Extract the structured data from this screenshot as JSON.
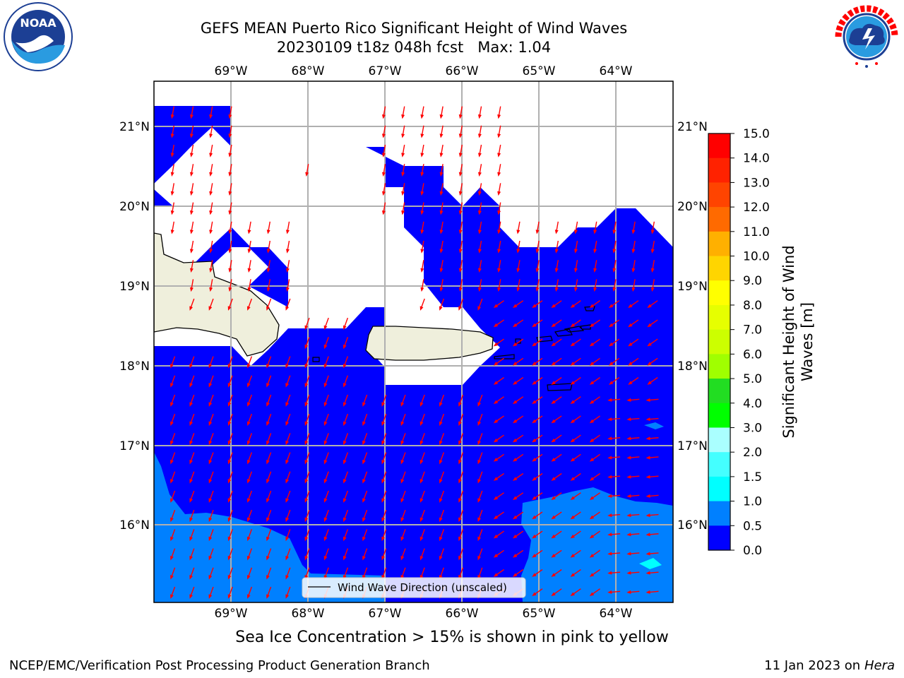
{
  "header": {
    "title_line1": "GEFS MEAN Puerto Rico Significant Height of Wind Waves",
    "title_line2": "20230109 t18z 048h fcst   Max: 1.04"
  },
  "logos": {
    "left": {
      "text": "NOAA",
      "ring_text": "NATIONAL OCEANIC AND ATMOSPHERIC ADMINISTRATION"
    },
    "right": {
      "ring_text": "NATIONAL WEATHER SERVICE"
    }
  },
  "map": {
    "lon_labels": [
      "69°W",
      "68°W",
      "67°W",
      "66°W",
      "65°W",
      "64°W"
    ],
    "lat_labels": [
      "21°N",
      "20°N",
      "19°N",
      "18°N",
      "17°N",
      "16°N"
    ],
    "legend_label": "Wind Wave Direction (unscaled)",
    "colors": {
      "ocean": "#0000ff",
      "band_0_5": "#0080ff",
      "band_1_0": "#00ffff",
      "land": "#efefdc",
      "arrow": "#ff0000"
    }
  },
  "colorbar": {
    "ticks": [
      "15.0",
      "14.0",
      "13.0",
      "12.0",
      "11.0",
      "10.0",
      "9.0",
      "8.0",
      "7.0",
      "6.0",
      "5.0",
      "4.0",
      "3.0",
      "2.0",
      "1.5",
      "1.0",
      "0.5",
      "0.0"
    ],
    "colors": [
      "#ff0000",
      "#ff2200",
      "#ff4400",
      "#ff6a00",
      "#ff8c00",
      "#ffb000",
      "#ffd500",
      "#ffff00",
      "#e6ff00",
      "#ccff00",
      "#a0ff00",
      "#22dd22",
      "#00ff00",
      "#44ff88",
      "#aaffff",
      "#44ffff",
      "#00ffff",
      "#0080ff",
      "#0000ff"
    ],
    "label_line1": "Significant Height of Wind",
    "label_line2": "Waves [m]"
  },
  "note": "Sea Ice Concentration > 15% is shown in pink to yellow",
  "footer": {
    "left": "NCEP/EMC/Verification Post Processing Product Generation Branch",
    "right_prefix": "11 Jan 2023 on ",
    "right_machine": "Hera"
  }
}
